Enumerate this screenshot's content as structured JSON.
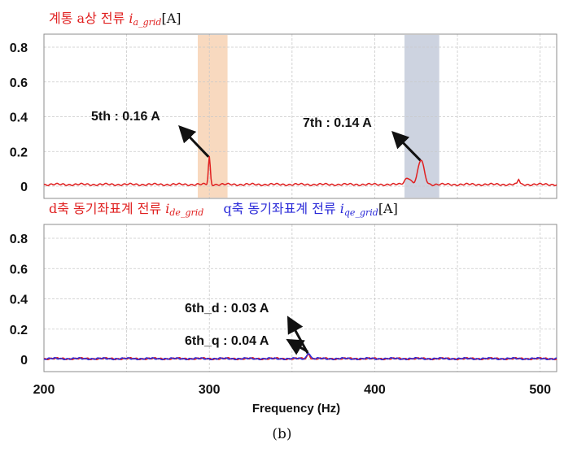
{
  "figure": {
    "caption": "(b)",
    "top_title": {
      "text": "계통 a상 전류 ",
      "var": "i",
      "sub": "a_grid",
      "unit": "[A]"
    },
    "bottom_title": {
      "d_text": "d축 동기좌표계 전류 ",
      "d_var": "i",
      "d_sub": "de_grid",
      "q_text": "q축 동기좌표계 전류 ",
      "q_var": "i",
      "q_sub": "qe_grid",
      "unit": "[A]"
    },
    "xlabel": "Frequency (Hz)"
  },
  "chart_data": [
    {
      "type": "line",
      "title": "계통 a상 전류 i_a_grid [A]",
      "xlabel": "",
      "ylabel": "",
      "xlim": [
        200,
        510
      ],
      "ylim": [
        -0.05,
        0.86
      ],
      "yticks": [
        0,
        0.2,
        0.4,
        0.6,
        0.8
      ],
      "grid": true,
      "baseline": 0.01,
      "highlight_bands": [
        {
          "x": [
            293,
            311
          ],
          "color": "#f8d9bf"
        },
        {
          "x": [
            418,
            439
          ],
          "color": "#cdd3e0"
        }
      ],
      "series": [
        {
          "color": "#e02020",
          "peaks": [
            {
              "x": 300,
              "y": 0.16,
              "width": 0.8
            },
            {
              "x": 428,
              "y": 0.14,
              "width": 2.6
            },
            {
              "x": 420,
              "y": 0.04,
              "width": 2.5
            },
            {
              "x": 487,
              "y": 0.03,
              "width": 0.8
            }
          ]
        }
      ],
      "annotations": [
        {
          "text": "5th : 0.16 A",
          "x": 300,
          "y": 0.16
        },
        {
          "text": "7th : 0.14 A",
          "x": 428,
          "y": 0.14
        }
      ]
    },
    {
      "type": "line",
      "title": "d축 동기좌표계 전류 i_de_grid  q축 동기좌표계 전류 i_qe_grid [A]",
      "xlabel": "Frequency (Hz)",
      "ylabel": "",
      "xlim": [
        200,
        510
      ],
      "ylim": [
        -0.05,
        0.86
      ],
      "xticks": [
        200,
        300,
        400,
        500
      ],
      "yticks": [
        0,
        0.2,
        0.4,
        0.6,
        0.8
      ],
      "grid": true,
      "baseline": 0.005,
      "series": [
        {
          "color": "#e02020",
          "peaks": [
            {
              "x": 360,
              "y": 0.03,
              "width": 1.2
            }
          ]
        },
        {
          "color": "#2a2ad8",
          "peaks": [
            {
              "x": 360,
              "y": 0.04,
              "width": 1.4
            }
          ]
        }
      ],
      "annotations": [
        {
          "text": "6th_d : 0.03 A",
          "x": 360,
          "y": 0.03
        },
        {
          "text": "6th_q : 0.04 A",
          "x": 360,
          "y": 0.04
        }
      ]
    }
  ]
}
